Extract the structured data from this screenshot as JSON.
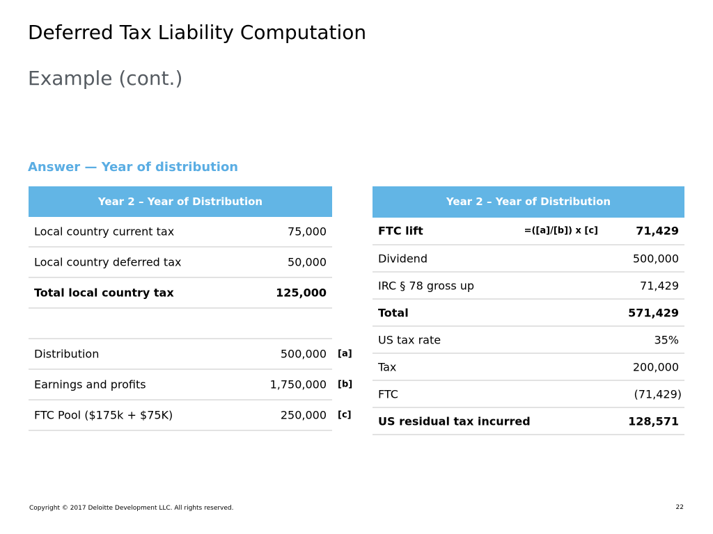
{
  "slide": {
    "title": "Deferred Tax Liability Computation",
    "subtitle": "Example (cont.)",
    "section_heading": "Answer — Year of distribution"
  },
  "left_table": {
    "header": "Year 2 – Year of Distribution",
    "rows": [
      {
        "label": "Local country current tax",
        "value": "75,000",
        "ref": ""
      },
      {
        "label": "Local country deferred tax",
        "value": "50,000",
        "ref": ""
      },
      {
        "label": "Total local country tax",
        "value": "125,000",
        "ref": ""
      },
      {
        "label": "",
        "value": "",
        "ref": ""
      },
      {
        "label": "Distribution",
        "value": "500,000",
        "ref": "[a]"
      },
      {
        "label": "Earnings and profits",
        "value": "1,750,000",
        "ref": "[b]"
      },
      {
        "label": "FTC Pool ($175k + $75K)",
        "value": "250,000",
        "ref": "[c]"
      }
    ]
  },
  "right_table": {
    "header": "Year 2 – Year of Distribution",
    "rows": [
      {
        "label": "FTC lift",
        "formula": "=([a]/[b]) x [c]",
        "value": "71,429"
      },
      {
        "label": "Dividend",
        "formula": "",
        "value": "500,000"
      },
      {
        "label": "IRC § 78 gross up",
        "formula": "",
        "value": "71,429"
      },
      {
        "label": "Total",
        "formula": "",
        "value": "571,429"
      },
      {
        "label": "US tax rate",
        "formula": "",
        "value": "35%"
      },
      {
        "label": "Tax",
        "formula": "",
        "value": "200,000"
      },
      {
        "label": "FTC",
        "formula": "",
        "value": "(71,429)"
      },
      {
        "label": "US residual tax incurred",
        "formula": "",
        "value": "128,571"
      }
    ]
  },
  "footer": {
    "copyright": "Copyright © 2017 Deloitte Development LLC. All rights reserved.",
    "page_number": "22"
  },
  "colors": {
    "header_bg": "#62b5e5",
    "heading_accent": "#5aade3",
    "subtitle_gray": "#555b61",
    "row_divider": "#e2e2e2"
  }
}
